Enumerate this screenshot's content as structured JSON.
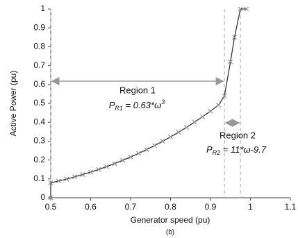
{
  "chart_data": {
    "type": "line",
    "x_label": "Generator speed (pu)",
    "y_label": "Active Power (pu)",
    "caption": "(b)",
    "x": [
      0.5,
      0.5,
      0.52,
      0.54,
      0.56,
      0.58,
      0.6,
      0.62,
      0.64,
      0.66,
      0.68,
      0.7,
      0.72,
      0.74,
      0.76,
      0.78,
      0.8,
      0.82,
      0.84,
      0.86,
      0.88,
      0.9,
      0.92,
      0.935,
      0.95,
      0.96,
      0.975,
      0.99
    ],
    "series": [
      {
        "name": "Active power",
        "color": "#333333",
        "marker_color": "#8c8c8c",
        "values": [
          0,
          0.079,
          0.089,
          0.099,
          0.111,
          0.123,
          0.136,
          0.15,
          0.165,
          0.181,
          0.198,
          0.216,
          0.235,
          0.255,
          0.277,
          0.299,
          0.323,
          0.347,
          0.373,
          0.401,
          0.429,
          0.459,
          0.491,
          0.54,
          0.72,
          0.85,
          1,
          1
        ]
      }
    ],
    "vlines": [
      0.5,
      0.935,
      0.975
    ],
    "annotations": [
      {
        "text": "Region 1",
        "formula": {
          "symbol": "P",
          "subscript": "R1",
          "expression": " = 0.63*ω",
          "superscript": "3"
        }
      },
      {
        "text": "Region 2",
        "formula": {
          "symbol": "P",
          "subscript": "R2",
          "expression": " = 11*ω-9.7",
          "superscript": ""
        }
      }
    ],
    "xlim": [
      0.5,
      1.1
    ],
    "xticks": [
      0.5,
      0.6,
      0.7,
      0.8,
      0.9,
      1,
      1.1
    ],
    "ylim": [
      0,
      1
    ],
    "yticks": [
      0,
      0.1,
      0.2,
      0.3,
      0.4,
      0.5,
      0.6,
      0.7,
      0.8,
      0.9,
      1
    ],
    "grid": false
  }
}
